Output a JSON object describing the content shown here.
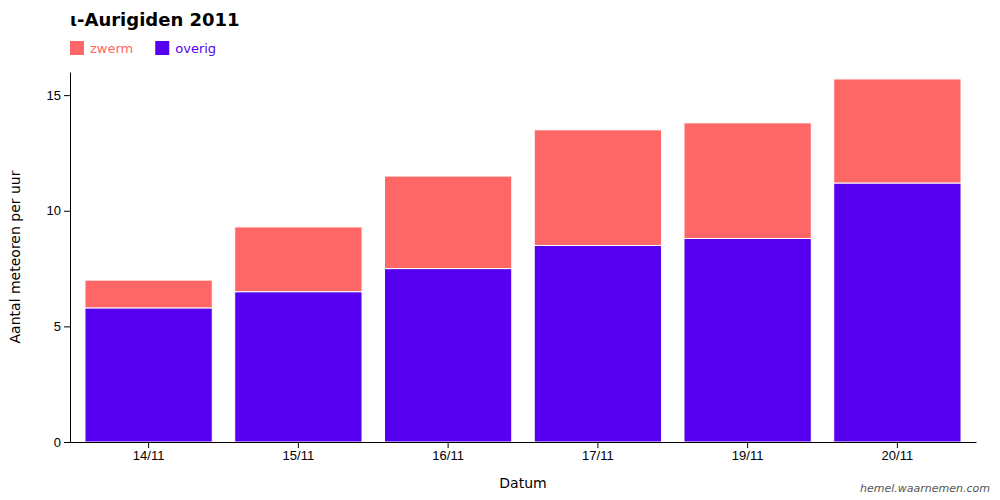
{
  "chart_data": {
    "type": "bar",
    "stacked": true,
    "title": "ι-Aurigiden 2011",
    "xlabel": "Datum",
    "ylabel": "Aantal meteoren per uur",
    "categories": [
      "14/11",
      "15/11",
      "16/11",
      "17/11",
      "19/11",
      "20/11"
    ],
    "series": [
      {
        "name": "overig",
        "color": "#5500EE",
        "values": [
          5.8,
          6.5,
          7.5,
          8.5,
          8.8,
          11.2
        ]
      },
      {
        "name": "zwerm",
        "color": "#FF6666",
        "values": [
          1.2,
          2.8,
          4.0,
          5.0,
          5.0,
          4.5
        ]
      }
    ],
    "ylim": [
      0,
      16
    ],
    "yticks": [
      0,
      5,
      10,
      15
    ],
    "grid": false,
    "legend": "upper left",
    "annotations": [
      "hemel.waarnemen.com"
    ]
  }
}
